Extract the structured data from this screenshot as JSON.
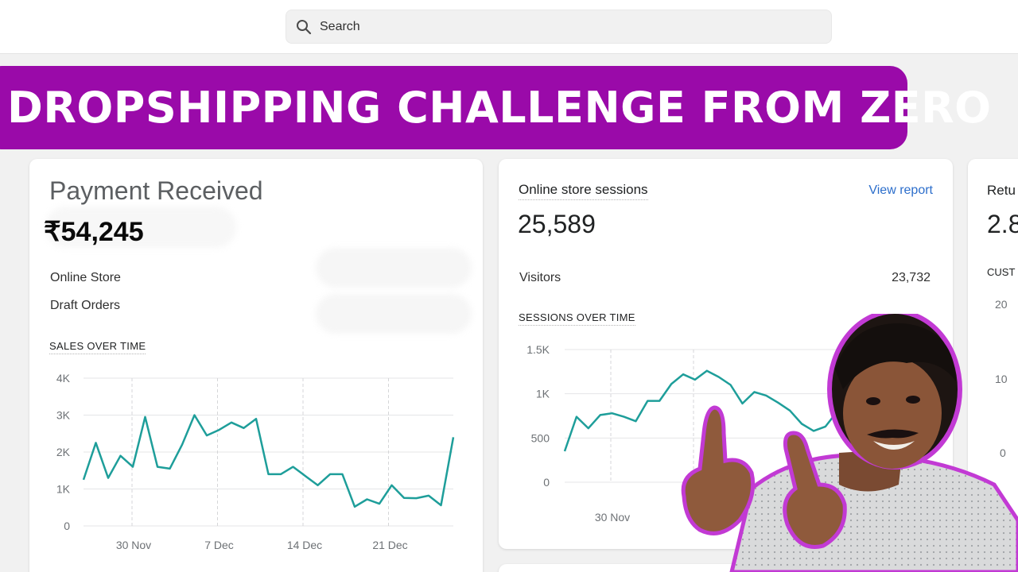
{
  "search": {
    "placeholder": "Search"
  },
  "banner": {
    "title": "DROPSHIPPING CHALLENGE FROM ZERO"
  },
  "payment_card": {
    "title": "Payment Received",
    "amount": "₹54,245",
    "rows": [
      {
        "label": "Online Store"
      },
      {
        "label": "Draft Orders"
      }
    ],
    "chart_title": "SALES OVER TIME"
  },
  "sessions_card": {
    "title": "Online store sessions",
    "link": "View report",
    "value": "25,589",
    "visitors_label": "Visitors",
    "visitors_value": "23,732",
    "chart_title": "SESSIONS OVER TIME"
  },
  "returning_card": {
    "title": "Retu",
    "value": "2.8",
    "chart_title": "CUST",
    "ticks": [
      "20",
      "10",
      "0"
    ]
  },
  "colors": {
    "line": "#1e9e9a",
    "banner": "#9a0aa9",
    "link": "#2c6ecb"
  },
  "chart_data": [
    {
      "type": "line",
      "title": "SALES OVER TIME",
      "x_ticks": [
        "30 Nov",
        "7 Dec",
        "14 Dec",
        "21 Dec"
      ],
      "y_ticks": [
        "4K",
        "3K",
        "2K",
        "1K",
        "0"
      ],
      "ylim": [
        0,
        4000
      ],
      "series": [
        {
          "values": [
            1250,
            2250,
            1300,
            1900,
            1600,
            2950,
            1600,
            1550,
            2200,
            3000,
            2450,
            2600,
            2800,
            2650,
            2900,
            1400,
            1400,
            1600,
            1350,
            1100,
            1400,
            1400,
            520,
            720,
            600,
            1100,
            760,
            750,
            820,
            560,
            2400
          ]
        }
      ]
    },
    {
      "type": "line",
      "title": "SESSIONS OVER TIME",
      "x_ticks": [
        "30 Nov",
        "7"
      ],
      "y_ticks": [
        "1.5K",
        "1K",
        "500",
        "0"
      ],
      "ylim": [
        0,
        1500
      ],
      "series": [
        {
          "values": [
            350,
            740,
            610,
            760,
            780,
            740,
            690,
            920,
            920,
            1110,
            1220,
            1160,
            1260,
            1190,
            1100,
            890,
            1020,
            980,
            900,
            810,
            660,
            580,
            630,
            800
          ]
        }
      ]
    }
  ]
}
